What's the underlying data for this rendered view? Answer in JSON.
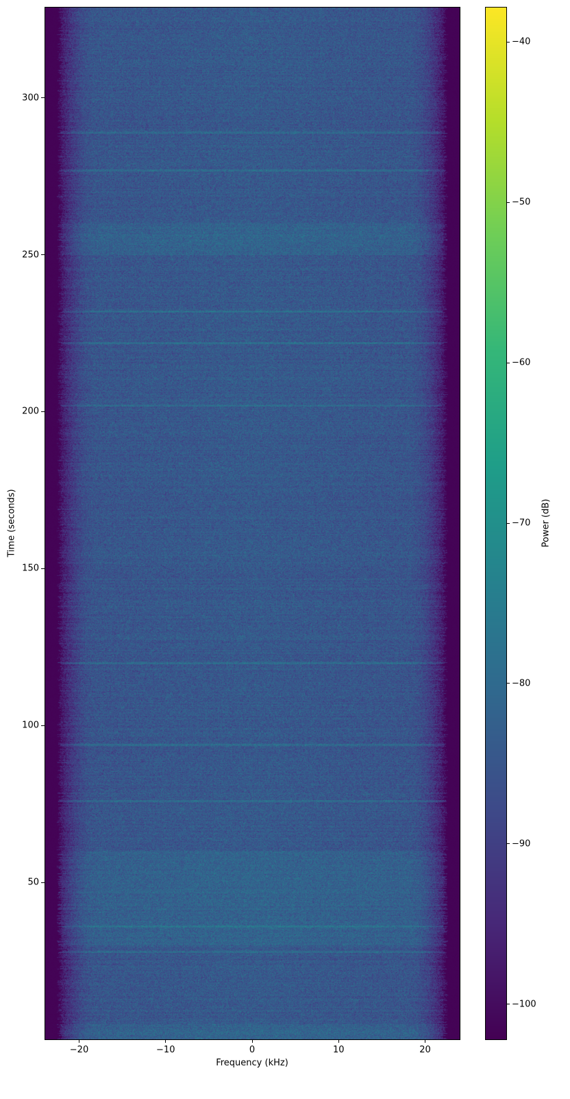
{
  "chart_data": {
    "type": "heatmap",
    "title": "",
    "xlabel": "Frequency (kHz)",
    "ylabel": "Time (seconds)",
    "xlim": [
      -24,
      24
    ],
    "ylim": [
      0,
      329
    ],
    "xticks": [
      -20,
      -10,
      0,
      10,
      20
    ],
    "xtick_labels": [
      "−20",
      "−10",
      "0",
      "10",
      "20"
    ],
    "yticks": [
      50,
      100,
      150,
      200,
      250,
      300
    ],
    "ytick_labels": [
      "50",
      "100",
      "150",
      "200",
      "250",
      "300"
    ],
    "colorbar": {
      "label": "Power (dB)",
      "colormap": "viridis",
      "clim": [
        -102.2,
        -37.8
      ],
      "ticks": [
        -100,
        -90,
        -80,
        -70,
        -60,
        -50,
        -40
      ],
      "tick_labels": [
        "−100",
        "−90",
        "−80",
        "−70",
        "−60",
        "−50",
        "−40"
      ]
    },
    "grid": false,
    "features": {
      "passband_edge_khz": 22,
      "rolloff_start_khz": 18,
      "typical_passband_power_db": -84,
      "out_of_band_power_db": -102,
      "brighter_time_intervals_s": [
        [
          30,
          60
        ],
        [
          250,
          260
        ],
        [
          0,
          5
        ]
      ],
      "horizontal_streak_times_s": [
        28,
        36,
        76,
        94,
        120,
        202,
        222,
        232,
        277,
        289
      ]
    }
  }
}
